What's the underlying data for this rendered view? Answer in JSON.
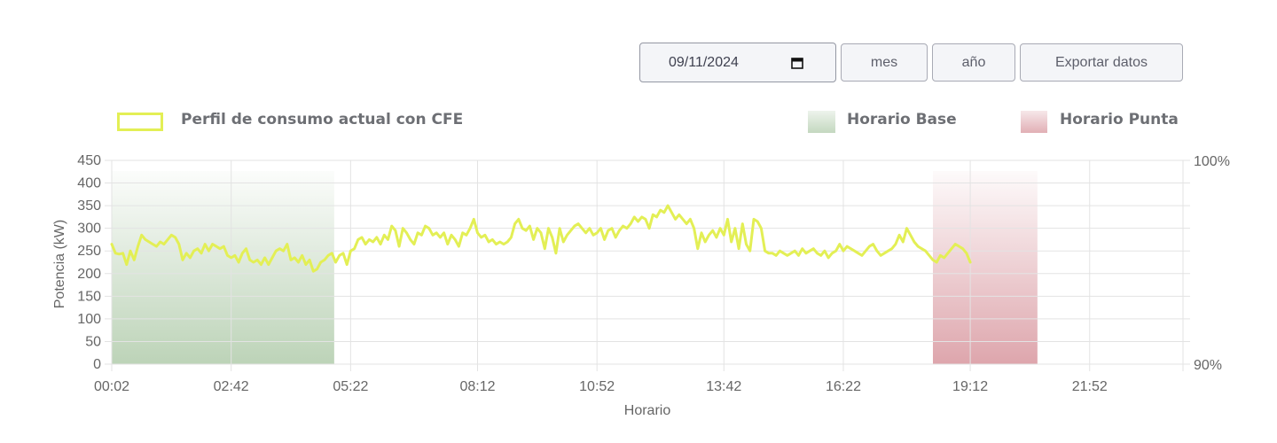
{
  "controls": {
    "date_value": "09/11/2024",
    "mes_label": "mes",
    "ano_label": "año",
    "export_label": "Exportar datos"
  },
  "legend": {
    "series_label": "Perfil de consumo actual con CFE",
    "base_label": "Horario Base",
    "punta_label": "Horario Punta"
  },
  "colors": {
    "series": "#e3ef55",
    "base": "#b9d1b4",
    "punta": "#dca1a8",
    "grid": "#e3e3e3"
  },
  "chart_data": {
    "type": "line",
    "xlabel": "Horario",
    "ylabel": "Potencia (kW)",
    "ylim": [
      0,
      450
    ],
    "y_ticks": [
      0,
      50,
      100,
      150,
      200,
      250,
      300,
      350,
      400,
      450
    ],
    "y2_ticks": [
      "100%",
      "90%"
    ],
    "x_tick_labels": [
      "00:02",
      "02:42",
      "05:22",
      "08:12",
      "10:52",
      "13:42",
      "16:22",
      "19:12",
      "21:52"
    ],
    "x_tick_minutes": [
      2,
      162,
      322,
      492,
      652,
      822,
      982,
      1152,
      1312
    ],
    "x_range_minutes": [
      2,
      1437
    ],
    "grid": true,
    "legend_position": "top",
    "bands": [
      {
        "name": "Horario Base",
        "start_minute": 2,
        "end_minute": 300
      },
      {
        "name": "Horario Punta",
        "start_minute": 1102,
        "end_minute": 1242
      }
    ],
    "series": [
      {
        "name": "Perfil de consumo actual con CFE",
        "step_minutes": 5,
        "values": [
          265,
          245,
          243,
          245,
          220,
          250,
          230,
          260,
          285,
          275,
          270,
          265,
          260,
          270,
          265,
          275,
          285,
          280,
          265,
          230,
          245,
          235,
          250,
          255,
          245,
          265,
          250,
          265,
          260,
          255,
          260,
          240,
          235,
          240,
          225,
          245,
          255,
          230,
          225,
          230,
          220,
          235,
          220,
          235,
          250,
          255,
          250,
          265,
          230,
          235,
          225,
          240,
          220,
          230,
          205,
          210,
          225,
          230,
          240,
          245,
          225,
          240,
          245,
          220,
          250,
          255,
          275,
          280,
          265,
          275,
          270,
          280,
          265,
          285,
          275,
          305,
          295,
          260,
          300,
          290,
          275,
          265,
          290,
          285,
          305,
          300,
          285,
          290,
          280,
          290,
          265,
          285,
          275,
          260,
          290,
          285,
          300,
          320,
          290,
          280,
          285,
          270,
          275,
          265,
          270,
          265,
          270,
          280,
          310,
          320,
          300,
          295,
          305,
          275,
          300,
          290,
          255,
          300,
          280,
          245,
          300,
          270,
          285,
          295,
          305,
          310,
          300,
          290,
          300,
          285,
          290,
          300,
          275,
          295,
          300,
          280,
          295,
          305,
          300,
          310,
          325,
          315,
          325,
          320,
          300,
          330,
          325,
          340,
          335,
          350,
          335,
          320,
          330,
          320,
          310,
          320,
          300,
          255,
          290,
          270,
          285,
          295,
          280,
          300,
          285,
          320,
          270,
          300,
          255,
          310,
          265,
          250,
          320,
          315,
          300,
          250,
          245,
          245,
          240,
          250,
          245,
          240,
          245,
          250,
          240,
          255,
          245,
          250,
          255,
          245,
          240,
          250,
          235,
          245,
          250,
          265,
          250,
          260,
          255,
          250,
          245,
          240,
          250,
          260,
          265,
          250,
          240,
          245,
          250,
          255,
          265,
          285,
          270,
          300,
          285,
          270,
          260,
          255,
          250,
          240,
          230,
          225,
          240,
          235,
          245,
          255,
          265,
          260,
          255,
          245,
          225
        ]
      }
    ]
  }
}
